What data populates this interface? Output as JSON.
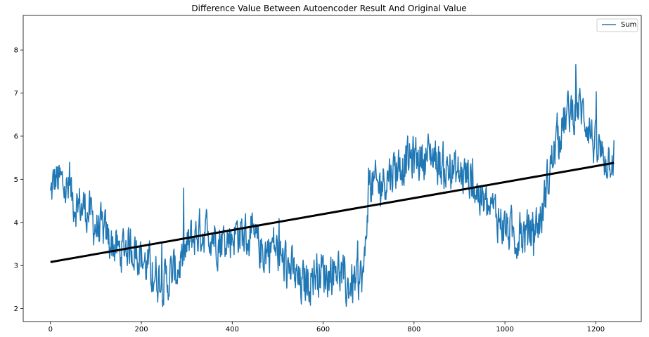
{
  "chart_data": {
    "type": "line",
    "title": "Difference Value Between Autoencoder Result And Original Value",
    "xlabel": "",
    "ylabel": "",
    "xlim": [
      -60,
      1300
    ],
    "ylim": [
      1.7,
      8.8
    ],
    "xticks": [
      0,
      200,
      400,
      600,
      800,
      1000,
      1200
    ],
    "yticks": [
      2,
      3,
      4,
      5,
      6,
      7,
      8
    ],
    "grid": false,
    "legend": {
      "placement": "top-right",
      "entries": [
        "Sum"
      ]
    },
    "series": [
      {
        "name": "Sum",
        "color": "#1f77b4",
        "x_range": [
          0,
          1240
        ],
        "profile": [
          [
            0,
            4.6
          ],
          [
            10,
            5.0
          ],
          [
            25,
            4.9
          ],
          [
            40,
            4.7
          ],
          [
            60,
            4.4
          ],
          [
            80,
            4.3
          ],
          [
            100,
            3.9
          ],
          [
            130,
            3.6
          ],
          [
            150,
            3.3
          ],
          [
            170,
            3.5
          ],
          [
            190,
            3.4
          ],
          [
            210,
            3.0
          ],
          [
            230,
            2.8
          ],
          [
            250,
            2.6
          ],
          [
            270,
            2.8
          ],
          [
            290,
            3.1
          ],
          [
            310,
            3.6
          ],
          [
            330,
            3.8
          ],
          [
            350,
            3.8
          ],
          [
            370,
            3.6
          ],
          [
            390,
            3.6
          ],
          [
            410,
            3.8
          ],
          [
            430,
            3.7
          ],
          [
            450,
            3.5
          ],
          [
            470,
            3.3
          ],
          [
            490,
            3.5
          ],
          [
            510,
            3.1
          ],
          [
            530,
            2.9
          ],
          [
            550,
            2.5
          ],
          [
            570,
            2.7
          ],
          [
            590,
            2.9
          ],
          [
            610,
            2.8
          ],
          [
            630,
            3.0
          ],
          [
            650,
            2.5
          ],
          [
            670,
            2.6
          ],
          [
            690,
            2.8
          ],
          [
            700,
            4.9
          ],
          [
            720,
            4.8
          ],
          [
            740,
            5.1
          ],
          [
            760,
            5.3
          ],
          [
            780,
            5.4
          ],
          [
            800,
            5.5
          ],
          [
            820,
            5.5
          ],
          [
            840,
            5.6
          ],
          [
            860,
            5.3
          ],
          [
            880,
            5.2
          ],
          [
            900,
            5.1
          ],
          [
            920,
            5.1
          ],
          [
            940,
            4.7
          ],
          [
            960,
            4.3
          ],
          [
            980,
            4.2
          ],
          [
            1000,
            3.9
          ],
          [
            1020,
            3.7
          ],
          [
            1040,
            3.7
          ],
          [
            1060,
            3.8
          ],
          [
            1080,
            4.1
          ],
          [
            1100,
            5.3
          ],
          [
            1120,
            6.1
          ],
          [
            1140,
            6.5
          ],
          [
            1160,
            6.7
          ],
          [
            1180,
            6.4
          ],
          [
            1200,
            5.7
          ],
          [
            1220,
            5.5
          ],
          [
            1240,
            5.6
          ]
        ]
      },
      {
        "name": "",
        "color": "#000000",
        "x": [
          0,
          1240
        ],
        "y": [
          3.08,
          5.38
        ]
      }
    ]
  }
}
